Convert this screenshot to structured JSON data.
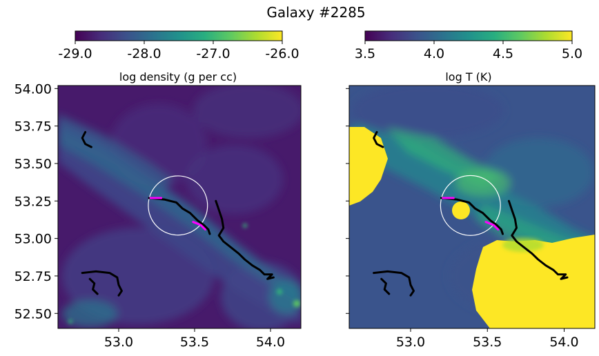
{
  "figure": {
    "title": "Galaxy #2285"
  },
  "chart_data": [
    {
      "type": "heatmap",
      "title": "log density (g per cc)",
      "colormap": "viridis",
      "colorbar": {
        "range": [
          -29.0,
          -26.0
        ],
        "tick_values": [
          -29.0,
          -28.0,
          -27.0,
          -26.0
        ],
        "tick_labels": [
          "-29.0",
          "-28.0",
          "-27.0",
          "-26.0"
        ]
      },
      "xlim": [
        52.6,
        54.2
      ],
      "ylim": [
        52.4,
        54.02
      ],
      "x_tick_values": [
        53.0,
        53.5,
        54.0
      ],
      "x_tick_labels": [
        "53.0",
        "53.5",
        "54.0"
      ],
      "y_tick_values": [
        52.5,
        52.75,
        53.0,
        53.25,
        53.5,
        53.75,
        54.0
      ],
      "y_tick_labels": [
        "52.50",
        "52.75",
        "53.00",
        "53.25",
        "53.50",
        "53.75",
        "54.00"
      ],
      "circle": {
        "center": [
          53.39,
          53.22
        ],
        "radius": 0.195,
        "color": "#ffffff"
      },
      "tracks": [
        {
          "color": "#000000",
          "points": [
            [
              52.78,
              53.71
            ],
            [
              52.76,
              53.67
            ],
            [
              52.78,
              53.63
            ],
            [
              52.82,
              53.61
            ]
          ]
        },
        {
          "color": "#000000",
          "points": [
            [
              53.2,
              53.27
            ],
            [
              53.3,
              53.26
            ],
            [
              53.38,
              53.24
            ],
            [
              53.42,
              53.2
            ],
            [
              53.47,
              53.17
            ],
            [
              53.52,
              53.12
            ],
            [
              53.56,
              53.09
            ],
            [
              53.59,
              53.06
            ],
            [
              53.6,
              53.03
            ]
          ]
        },
        {
          "color": "#ff00ff",
          "points": [
            [
              53.21,
              53.27
            ],
            [
              53.28,
              53.27
            ]
          ]
        },
        {
          "color": "#ff00ff",
          "points": [
            [
              53.49,
              53.11
            ],
            [
              53.54,
              53.09
            ],
            [
              53.57,
              53.06
            ]
          ]
        },
        {
          "color": "#000000",
          "points": [
            [
              53.64,
              53.25
            ],
            [
              53.66,
              53.19
            ],
            [
              53.68,
              53.13
            ],
            [
              53.69,
              53.07
            ],
            [
              53.66,
              53.02
            ],
            [
              53.69,
              52.98
            ],
            [
              53.74,
              52.94
            ],
            [
              53.79,
              52.9
            ],
            [
              53.83,
              52.86
            ],
            [
              53.88,
              52.82
            ],
            [
              53.93,
              52.79
            ],
            [
              53.96,
              52.76
            ],
            [
              54.01,
              52.76
            ],
            [
              53.98,
              52.73
            ],
            [
              54.02,
              52.74
            ]
          ]
        },
        {
          "color": "#000000",
          "points": [
            [
              52.76,
              52.77
            ],
            [
              52.85,
              52.78
            ],
            [
              52.94,
              52.77
            ],
            [
              52.99,
              52.74
            ],
            [
              53.0,
              52.69
            ],
            [
              53.02,
              52.65
            ],
            [
              53.0,
              52.62
            ]
          ]
        },
        {
          "color": "#000000",
          "points": [
            [
              52.81,
              52.73
            ],
            [
              52.84,
              52.7
            ],
            [
              52.83,
              52.66
            ],
            [
              52.86,
              52.63
            ]
          ]
        }
      ]
    },
    {
      "type": "heatmap",
      "title": "log T (K)",
      "colormap": "viridis",
      "colorbar": {
        "range": [
          3.5,
          5.0
        ],
        "tick_values": [
          3.5,
          4.0,
          4.5,
          5.0
        ],
        "tick_labels": [
          "3.5",
          "4.0",
          "4.5",
          "5.0"
        ]
      },
      "xlim": [
        52.6,
        54.2
      ],
      "ylim": [
        52.4,
        54.02
      ],
      "x_tick_values": [
        53.0,
        53.5,
        54.0
      ],
      "x_tick_labels": [
        "53.0",
        "53.5",
        "54.0"
      ],
      "y_tick_values": [
        52.5,
        52.75,
        53.0,
        53.25,
        53.5,
        53.75,
        54.0
      ],
      "y_tick_labels": [],
      "circle": {
        "center": [
          53.39,
          53.22
        ],
        "radius": 0.195,
        "color": "#ffffff"
      },
      "tracks": [
        {
          "color": "#000000",
          "points": [
            [
              52.78,
              53.71
            ],
            [
              52.76,
              53.67
            ],
            [
              52.78,
              53.63
            ],
            [
              52.82,
              53.61
            ]
          ]
        },
        {
          "color": "#000000",
          "points": [
            [
              53.2,
              53.27
            ],
            [
              53.3,
              53.26
            ],
            [
              53.38,
              53.24
            ],
            [
              53.42,
              53.2
            ],
            [
              53.47,
              53.17
            ],
            [
              53.52,
              53.12
            ],
            [
              53.56,
              53.09
            ],
            [
              53.59,
              53.06
            ],
            [
              53.6,
              53.03
            ]
          ]
        },
        {
          "color": "#ff00ff",
          "points": [
            [
              53.21,
              53.27
            ],
            [
              53.28,
              53.27
            ]
          ]
        },
        {
          "color": "#ff00ff",
          "points": [
            [
              53.49,
              53.11
            ],
            [
              53.54,
              53.09
            ],
            [
              53.57,
              53.06
            ]
          ]
        },
        {
          "color": "#000000",
          "points": [
            [
              53.64,
              53.25
            ],
            [
              53.66,
              53.19
            ],
            [
              53.68,
              53.13
            ],
            [
              53.69,
              53.07
            ],
            [
              53.66,
              53.02
            ],
            [
              53.69,
              52.98
            ],
            [
              53.74,
              52.94
            ],
            [
              53.79,
              52.9
            ],
            [
              53.83,
              52.86
            ],
            [
              53.88,
              52.82
            ],
            [
              53.93,
              52.79
            ],
            [
              53.96,
              52.76
            ],
            [
              54.01,
              52.76
            ],
            [
              53.98,
              52.73
            ],
            [
              54.02,
              52.74
            ]
          ]
        },
        {
          "color": "#000000",
          "points": [
            [
              52.76,
              52.77
            ],
            [
              52.85,
              52.78
            ],
            [
              52.94,
              52.77
            ],
            [
              52.99,
              52.74
            ],
            [
              53.0,
              52.69
            ],
            [
              53.02,
              52.65
            ],
            [
              53.0,
              52.62
            ]
          ]
        },
        {
          "color": "#000000",
          "points": [
            [
              52.81,
              52.73
            ],
            [
              52.84,
              52.7
            ],
            [
              52.83,
              52.66
            ],
            [
              52.86,
              52.63
            ]
          ]
        }
      ]
    }
  ]
}
